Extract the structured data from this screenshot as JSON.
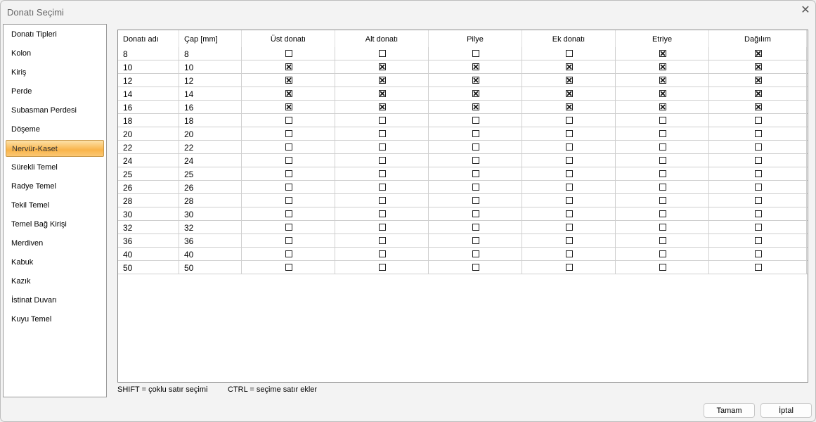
{
  "window": {
    "title": "Donatı Seçimi"
  },
  "sidebar": {
    "selected": "Nervür-Kaset",
    "items": [
      "Donatı Tipleri",
      "Kolon",
      "Kiriş",
      "Perde",
      "Subasman Perdesi",
      "Döşeme",
      "Nervür-Kaset",
      "Sürekli Temel",
      "Radye Temel",
      "Tekil Temel",
      "Temel Bağ Kirişi",
      "Merdiven",
      "Kabuk",
      "Kazık",
      "İstinat Duvarı",
      "Kuyu Temel"
    ]
  },
  "table": {
    "columns": [
      "Donatı adı",
      "Çap [mm]",
      "Üst donatı",
      "Alt  donatı",
      "Pilye",
      "Ek donatı",
      "Etriye",
      "Dağılım"
    ],
    "rows": [
      {
        "name": "8",
        "cap": "8",
        "checks": [
          false,
          false,
          false,
          false,
          true,
          true
        ]
      },
      {
        "name": "10",
        "cap": "10",
        "checks": [
          true,
          true,
          true,
          true,
          true,
          true
        ]
      },
      {
        "name": "12",
        "cap": "12",
        "checks": [
          true,
          true,
          true,
          true,
          true,
          true
        ]
      },
      {
        "name": "14",
        "cap": "14",
        "checks": [
          true,
          true,
          true,
          true,
          true,
          true
        ]
      },
      {
        "name": "16",
        "cap": "16",
        "checks": [
          true,
          true,
          true,
          true,
          true,
          true
        ]
      },
      {
        "name": "18",
        "cap": "18",
        "checks": [
          false,
          false,
          false,
          false,
          false,
          false
        ]
      },
      {
        "name": "20",
        "cap": "20",
        "checks": [
          false,
          false,
          false,
          false,
          false,
          false
        ]
      },
      {
        "name": "22",
        "cap": "22",
        "checks": [
          false,
          false,
          false,
          false,
          false,
          false
        ]
      },
      {
        "name": "24",
        "cap": "24",
        "checks": [
          false,
          false,
          false,
          false,
          false,
          false
        ]
      },
      {
        "name": "25",
        "cap": "25",
        "checks": [
          false,
          false,
          false,
          false,
          false,
          false
        ]
      },
      {
        "name": "26",
        "cap": "26",
        "checks": [
          false,
          false,
          false,
          false,
          false,
          false
        ]
      },
      {
        "name": "28",
        "cap": "28",
        "checks": [
          false,
          false,
          false,
          false,
          false,
          false
        ]
      },
      {
        "name": "30",
        "cap": "30",
        "checks": [
          false,
          false,
          false,
          false,
          false,
          false
        ]
      },
      {
        "name": "32",
        "cap": "32",
        "checks": [
          false,
          false,
          false,
          false,
          false,
          false
        ]
      },
      {
        "name": "36",
        "cap": "36",
        "checks": [
          false,
          false,
          false,
          false,
          false,
          false
        ]
      },
      {
        "name": "40",
        "cap": "40",
        "checks": [
          false,
          false,
          false,
          false,
          false,
          false
        ]
      },
      {
        "name": "50",
        "cap": "50",
        "checks": [
          false,
          false,
          false,
          false,
          false,
          false
        ]
      }
    ]
  },
  "hints": {
    "shift": "SHIFT = çoklu satır seçimi",
    "ctrl": "CTRL = seçime satır ekler"
  },
  "buttons": {
    "ok": "Tamam",
    "cancel": "İptal"
  },
  "colors": {
    "selected_item": "#f9b44a"
  }
}
